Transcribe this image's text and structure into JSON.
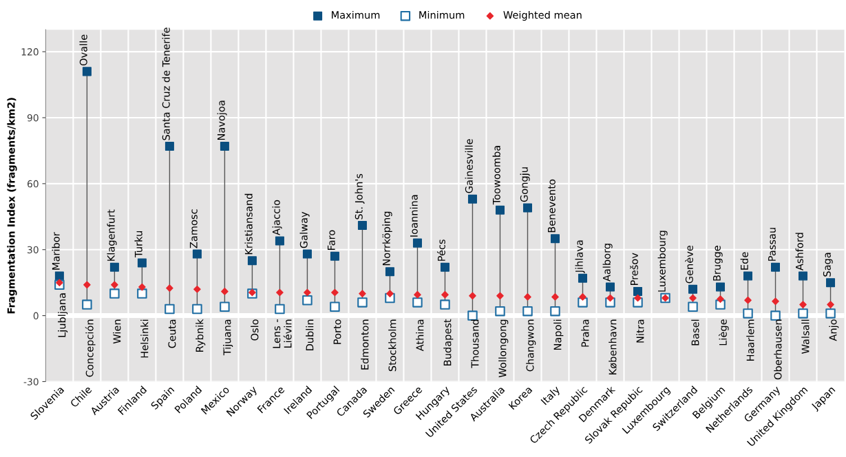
{
  "chart_data": {
    "type": "scatter",
    "ylabel": "Fragmentation Index (fragments/km2)",
    "categories": [
      "Slovenia",
      "Chile",
      "Austria",
      "Finland",
      "Spain",
      "Poland",
      "Mexico",
      "Norway",
      "France",
      "Ireland",
      "Portugal",
      "Canada",
      "Sweden",
      "Greece",
      "Hungary",
      "United States",
      "Australia",
      "Korea",
      "Italy",
      "Czech Republic",
      "Denmark",
      "Slovak Repubic",
      "Luxembourg",
      "Switzerland",
      "Belgium",
      "Netherlands",
      "Germany",
      "United Kingdom",
      "Japan"
    ],
    "series": [
      {
        "name": "Maximum",
        "color": "#0a4f80",
        "marker": "square",
        "values": [
          18,
          111,
          22,
          24,
          77,
          28,
          77,
          25,
          34,
          28,
          27,
          41,
          20,
          33,
          22,
          53,
          48,
          49,
          35,
          17,
          13,
          11,
          null,
          12,
          13,
          18,
          22,
          18,
          15
        ],
        "value_labels": [
          "Maribor",
          "Ovalle",
          "Klagenfurt",
          "Turku",
          "Santa Cruz de Tenerife",
          "Zamosc",
          "Navojoa",
          "Kristiansand",
          "Ajaccio",
          "Galway",
          "Faro",
          "St. John's",
          "Norrköping",
          "Ioannina",
          "Pécs",
          "Gainesville",
          "Toowoomba",
          "Gongju",
          "Benevento",
          "Jihlava",
          "Aalborg",
          "Prešov",
          null,
          "Genève",
          "Brugge",
          "Ede",
          "Passau",
          "Ashford",
          "Saga"
        ]
      },
      {
        "name": "Minimum",
        "color": "#1f6ea3",
        "marker": "square",
        "values": [
          14,
          5,
          10,
          10,
          3,
          3,
          4,
          10,
          3,
          7,
          4,
          6,
          8,
          6,
          5,
          0,
          2,
          2,
          2,
          6,
          6,
          6,
          8,
          4,
          5,
          1,
          0,
          1,
          1
        ],
        "value_labels": [
          "Ljubljana",
          "Concepción",
          "Wien",
          "Helsinki",
          "Ceuta",
          "Rybnik",
          "Tijuana",
          "Oslo",
          "Lens -\nLiévin",
          "Dublin",
          "Porto",
          "Edmonton",
          "Stockholm",
          "Athina",
          "Budapest",
          "Thousand",
          "Wollongong",
          "Changwon",
          "Napoli",
          "Praha",
          "København",
          "Nitra",
          "Luxembourg",
          "Basel",
          "Liège",
          "Haarlem",
          "Oberhausen",
          "Walsall",
          "Anjo"
        ]
      },
      {
        "name": "Weighted mean",
        "color": "#e8262c",
        "marker": "diamond",
        "values": [
          15,
          14,
          14,
          13,
          12.5,
          12,
          11,
          10.5,
          10.5,
          10.5,
          10.5,
          10,
          10,
          9.5,
          9.5,
          9,
          9,
          8.5,
          8.5,
          8.5,
          8,
          8,
          8,
          8,
          7.5,
          7,
          6.5,
          5,
          5
        ]
      }
    ],
    "ylim": [
      -30,
      130
    ],
    "yticks": [
      -30,
      0,
      30,
      60,
      90,
      120
    ],
    "grid": true,
    "legend": "top"
  }
}
